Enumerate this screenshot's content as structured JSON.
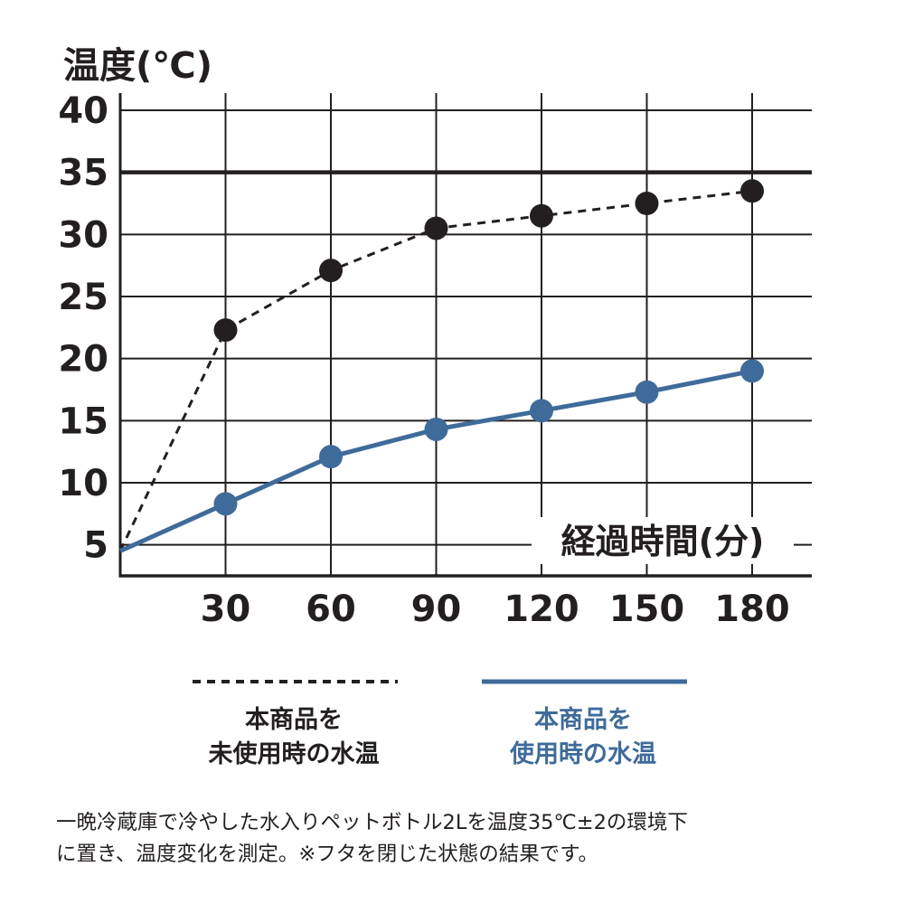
{
  "chart_data": {
    "type": "line",
    "ylabel": "温度(℃)",
    "xlabel": "経過時間(分)",
    "x": [
      0,
      30,
      60,
      90,
      120,
      150,
      180
    ],
    "x_ticks": [
      "30",
      "60",
      "90",
      "120",
      "150",
      "180"
    ],
    "y_ticks": [
      "5",
      "10",
      "15",
      "20",
      "25",
      "30",
      "35",
      "40"
    ],
    "xlim": [
      0,
      195
    ],
    "ylim": [
      2.5,
      40
    ],
    "reference_line": 35,
    "grid": true,
    "series": [
      {
        "name": "本商品を未使用時の水温",
        "style": "dashed",
        "color": "#231f20",
        "values": [
          4.5,
          22.3,
          27.1,
          30.5,
          31.5,
          32.5,
          33.5
        ]
      },
      {
        "name": "本商品を使用時の水温",
        "style": "solid",
        "color": "#3f6b9a",
        "values": [
          4.5,
          8.3,
          12.1,
          14.3,
          15.8,
          17.3,
          19.0
        ]
      }
    ]
  },
  "legend": {
    "black": {
      "line1": "本商品を",
      "line2": "未使用時の水温"
    },
    "blue": {
      "line1": "本商品を",
      "line2": "使用時の水温"
    }
  },
  "footnote": {
    "line1": "一晩冷蔵庫で冷やした水入りペットボトル2Lを温度35℃±2の環境下",
    "line2": "に置き、温度変化を測定。※フタを閉じた状態の結果です。"
  }
}
